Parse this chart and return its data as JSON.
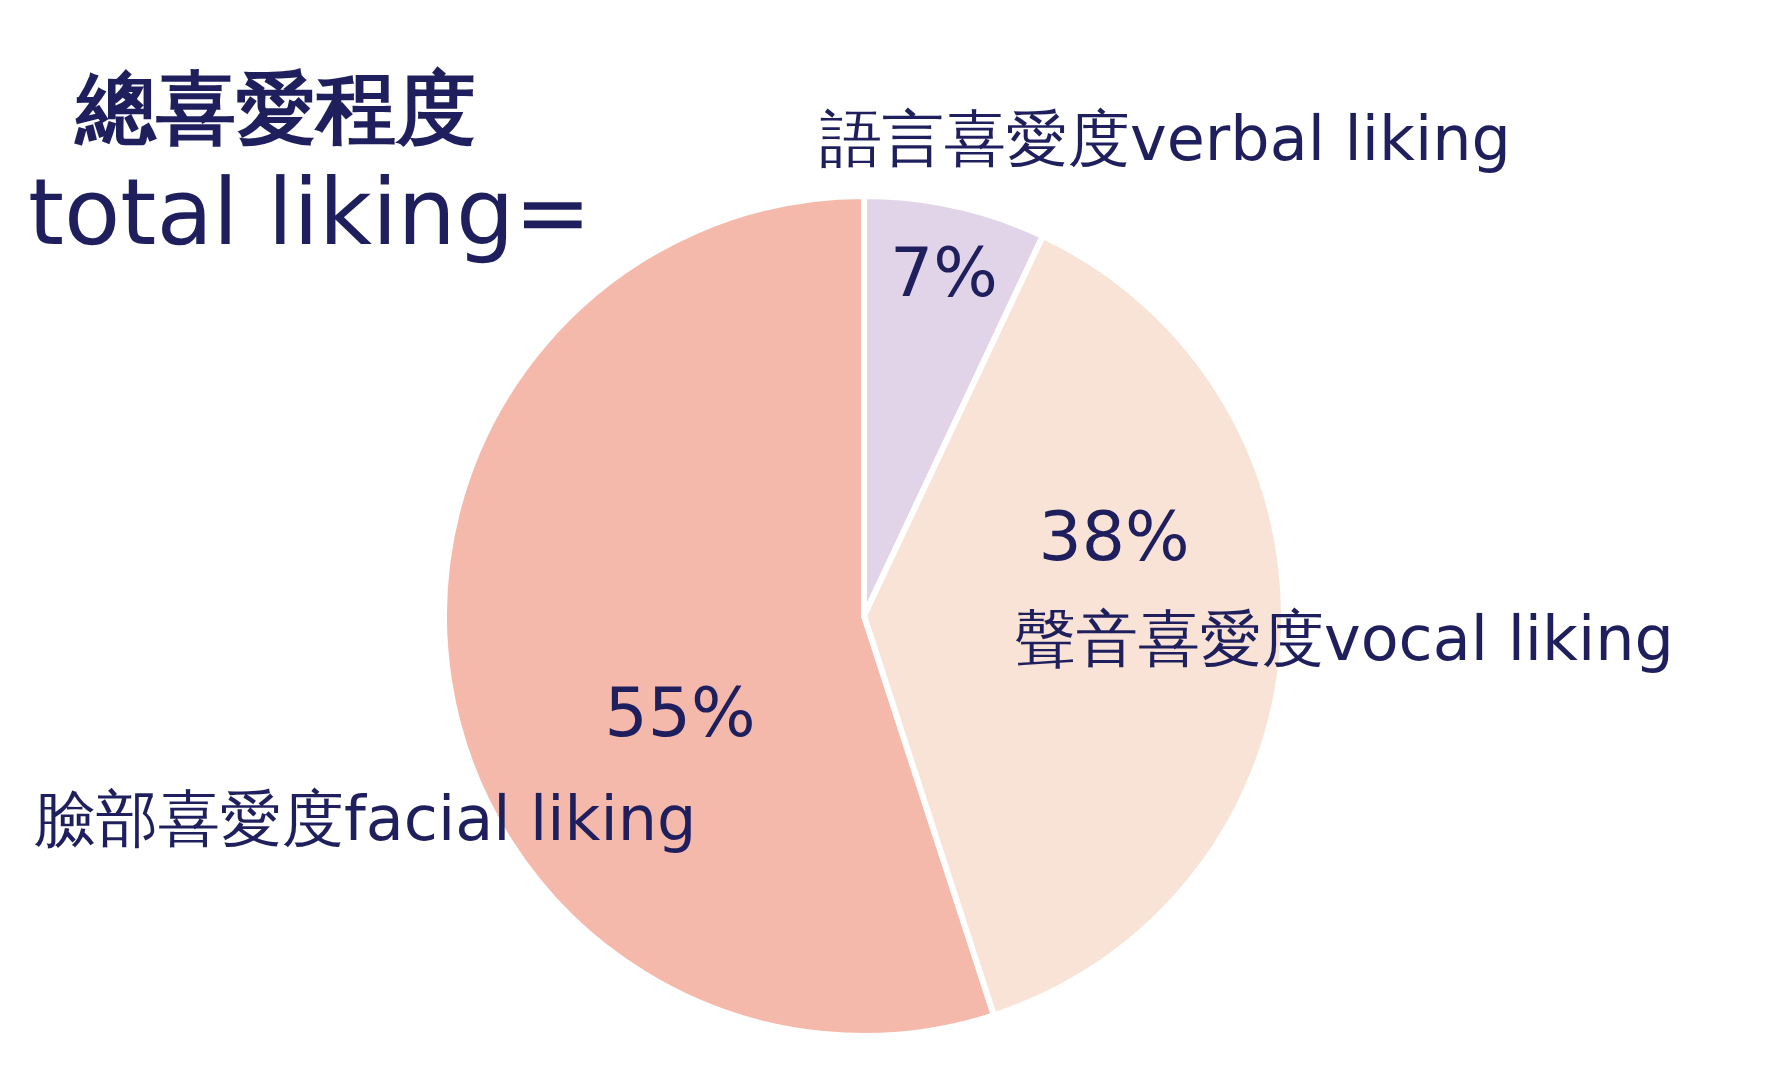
{
  "chart_data": {
    "type": "pie",
    "title": "總喜愛程度",
    "subtitle": "total liking=",
    "categories": [
      "語言喜愛度verbal liking",
      "聲音喜愛度vocal liking",
      "臉部喜愛度facial liking"
    ],
    "values": [
      7,
      38,
      55
    ],
    "value_labels": [
      "7%",
      "38%",
      "55%"
    ],
    "colors": [
      "#e2d4e8",
      "#f8e3d6",
      "#f5b9ab"
    ]
  }
}
